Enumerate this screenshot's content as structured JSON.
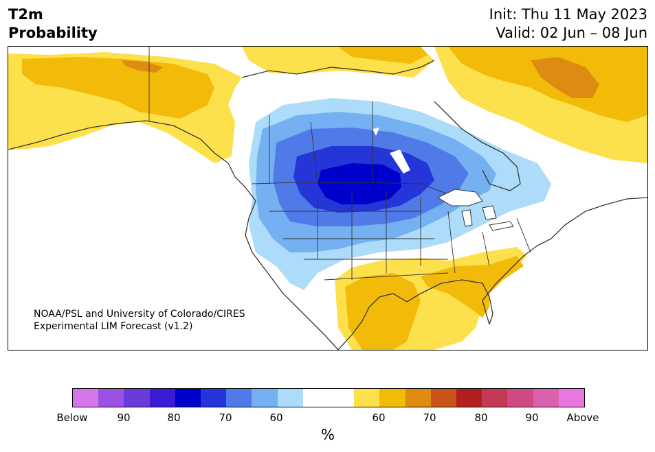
{
  "header": {
    "variable": "T2m",
    "product": "Probability",
    "init": "Init: Thu 11 May 2023",
    "valid": "Valid: 02 Jun – 08 Jun"
  },
  "map": {
    "credit_line1": "NOAA/PSL and University of Colorado/CIRES",
    "credit_line2": "Experimental LIM Forecast (v1.2)",
    "colors": {
      "below_60": "#acdcfa",
      "below_70": "#74b0f2",
      "below_75": "#4f7ae8",
      "below_80": "#2536d8",
      "below_85": "#0000cc",
      "above_60": "#fde14c",
      "above_65": "#f2bb0a",
      "above_70": "#de8b11",
      "land_border": "#333333"
    }
  },
  "colorbar": {
    "unit": "%",
    "segments": [
      "#d575ea",
      "#9b51e2",
      "#6a3bd9",
      "#3a1cd6",
      "#0000cc",
      "#2536d8",
      "#4f7ae8",
      "#74b0f2",
      "#acdcfa",
      "#ffffff",
      "#fde14c",
      "#f2bb0a",
      "#de8b11",
      "#c9541a",
      "#b1201f",
      "#c43a56",
      "#cf4a83",
      "#d962ae",
      "#e877e0"
    ],
    "ticks": [
      "Below",
      "90",
      "80",
      "70",
      "60",
      "60",
      "70",
      "80",
      "90",
      "Above"
    ]
  }
}
